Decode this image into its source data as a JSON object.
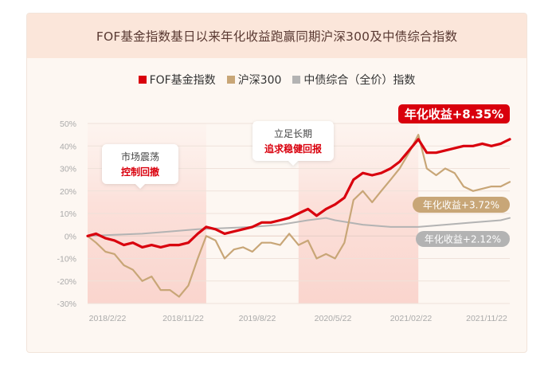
{
  "chart_data": {
    "type": "line",
    "title": "FOF基金指数基日以来年化收益跑赢同期沪深300及中债综合指数",
    "x_ticks": [
      "2018/2/22",
      "2018/11/22",
      "2019/8/22",
      "2020/5/22",
      "2021/02/22",
      "2021/11/22"
    ],
    "y_ticks": [
      "50%",
      "40%",
      "30%",
      "20%",
      "10%",
      "0%",
      "-10%",
      "-20%",
      "-30%"
    ],
    "ylim": [
      -30,
      50
    ],
    "xlim": [
      "2018/2/22",
      "2021/12/22"
    ],
    "series": [
      {
        "name": "FOF基金指数",
        "color": "#d9000d",
        "annual_return_label": "年化收益+8.35%",
        "points": [
          [
            "2018/2/22",
            0
          ],
          [
            "2018/3/22",
            1
          ],
          [
            "2018/4/22",
            -1
          ],
          [
            "2018/5/22",
            -2
          ],
          [
            "2018/6/22",
            -4
          ],
          [
            "2018/7/22",
            -3
          ],
          [
            "2018/8/22",
            -5
          ],
          [
            "2018/9/22",
            -4
          ],
          [
            "2018/10/22",
            -5
          ],
          [
            "2018/11/22",
            -4
          ],
          [
            "2018/12/22",
            -4
          ],
          [
            "2019/1/22",
            -3
          ],
          [
            "2019/2/22",
            1
          ],
          [
            "2019/3/22",
            4
          ],
          [
            "2019/4/22",
            3
          ],
          [
            "2019/5/22",
            1
          ],
          [
            "2019/6/22",
            2
          ],
          [
            "2019/7/22",
            3
          ],
          [
            "2019/8/22",
            4
          ],
          [
            "2019/9/22",
            6
          ],
          [
            "2019/10/22",
            6
          ],
          [
            "2019/11/22",
            7
          ],
          [
            "2019/12/22",
            8
          ],
          [
            "2020/1/22",
            10
          ],
          [
            "2020/2/22",
            12
          ],
          [
            "2020/3/22",
            9
          ],
          [
            "2020/4/22",
            12
          ],
          [
            "2020/5/22",
            14
          ],
          [
            "2020/6/22",
            17
          ],
          [
            "2020/7/22",
            25
          ],
          [
            "2020/8/22",
            28
          ],
          [
            "2020/9/22",
            27
          ],
          [
            "2020/10/22",
            28
          ],
          [
            "2020/11/22",
            30
          ],
          [
            "2020/12/22",
            33
          ],
          [
            "2021/1/22",
            38
          ],
          [
            "2021/2/22",
            43
          ],
          [
            "2021/3/22",
            37
          ],
          [
            "2021/4/22",
            37
          ],
          [
            "2021/5/22",
            38
          ],
          [
            "2021/6/22",
            39
          ],
          [
            "2021/7/22",
            40
          ],
          [
            "2021/8/22",
            40
          ],
          [
            "2021/9/22",
            41
          ],
          [
            "2021/10/22",
            40
          ],
          [
            "2021/11/22",
            41
          ],
          [
            "2021/12/22",
            43
          ]
        ]
      },
      {
        "name": "沪深300",
        "color": "#c8a677",
        "annual_return_label": "年化收益+3.72%",
        "points": [
          [
            "2018/2/22",
            0
          ],
          [
            "2018/3/22",
            -3
          ],
          [
            "2018/4/22",
            -7
          ],
          [
            "2018/5/22",
            -8
          ],
          [
            "2018/6/22",
            -13
          ],
          [
            "2018/7/22",
            -15
          ],
          [
            "2018/8/22",
            -20
          ],
          [
            "2018/9/22",
            -18
          ],
          [
            "2018/10/22",
            -24
          ],
          [
            "2018/11/22",
            -24
          ],
          [
            "2018/12/22",
            -27
          ],
          [
            "2019/1/22",
            -22
          ],
          [
            "2019/2/22",
            -10
          ],
          [
            "2019/3/22",
            0
          ],
          [
            "2019/4/22",
            -2
          ],
          [
            "2019/5/22",
            -10
          ],
          [
            "2019/6/22",
            -6
          ],
          [
            "2019/7/22",
            -5
          ],
          [
            "2019/8/22",
            -7
          ],
          [
            "2019/9/22",
            -3
          ],
          [
            "2019/10/22",
            -3
          ],
          [
            "2019/11/22",
            -4
          ],
          [
            "2019/12/22",
            1
          ],
          [
            "2020/1/22",
            -4
          ],
          [
            "2020/2/22",
            -2
          ],
          [
            "2020/3/22",
            -10
          ],
          [
            "2020/4/22",
            -8
          ],
          [
            "2020/5/22",
            -10
          ],
          [
            "2020/6/22",
            -3
          ],
          [
            "2020/7/22",
            16
          ],
          [
            "2020/8/22",
            20
          ],
          [
            "2020/9/22",
            15
          ],
          [
            "2020/10/22",
            20
          ],
          [
            "2020/11/22",
            25
          ],
          [
            "2020/12/22",
            30
          ],
          [
            "2021/1/22",
            37
          ],
          [
            "2021/2/22",
            45
          ],
          [
            "2021/3/22",
            30
          ],
          [
            "2021/4/22",
            27
          ],
          [
            "2021/5/22",
            30
          ],
          [
            "2021/6/22",
            28
          ],
          [
            "2021/7/22",
            22
          ],
          [
            "2021/8/22",
            20
          ],
          [
            "2021/9/22",
            21
          ],
          [
            "2021/10/22",
            22
          ],
          [
            "2021/11/22",
            22
          ],
          [
            "2021/12/22",
            24
          ]
        ]
      },
      {
        "name": "中债综合（全价）指数",
        "color": "#b3b3b3",
        "annual_return_label": "年化收益+2.12%",
        "points": [
          [
            "2018/2/22",
            0
          ],
          [
            "2018/5/22",
            0.5
          ],
          [
            "2018/8/22",
            1
          ],
          [
            "2018/11/22",
            2
          ],
          [
            "2019/2/22",
            3
          ],
          [
            "2019/5/22",
            3.5
          ],
          [
            "2019/8/22",
            4
          ],
          [
            "2019/11/22",
            5
          ],
          [
            "2020/2/22",
            7
          ],
          [
            "2020/4/22",
            8
          ],
          [
            "2020/5/22",
            7
          ],
          [
            "2020/8/22",
            5
          ],
          [
            "2020/11/22",
            4
          ],
          [
            "2021/2/22",
            4
          ],
          [
            "2021/5/22",
            5
          ],
          [
            "2021/8/22",
            6
          ],
          [
            "2021/11/22",
            7
          ],
          [
            "2021/12/22",
            8
          ]
        ]
      }
    ],
    "shaded_periods": [
      [
        "2018/2/22",
        "2019/3/22"
      ],
      [
        "2020/1/22",
        "2021/2/22"
      ]
    ],
    "annotations": [
      {
        "line1": "市场震荡",
        "line2": "控制回撤",
        "at": "2018/7/22"
      },
      {
        "line1": "立足长期",
        "line2": "追求稳健回报",
        "at": "2020/3/22"
      }
    ]
  }
}
